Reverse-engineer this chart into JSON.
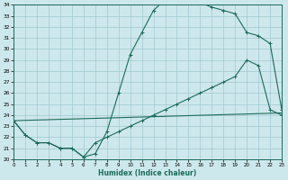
{
  "xlabel": "Humidex (Indice chaleur)",
  "bg_color": "#cde8ec",
  "grid_color": "#a0c8d0",
  "line_color": "#1a6b5a",
  "xlim": [
    0,
    23
  ],
  "ylim": [
    20,
    34
  ],
  "xticks": [
    0,
    1,
    2,
    3,
    4,
    5,
    6,
    7,
    8,
    9,
    10,
    11,
    12,
    13,
    14,
    15,
    16,
    17,
    18,
    19,
    20,
    21,
    22,
    23
  ],
  "yticks": [
    20,
    21,
    22,
    23,
    24,
    25,
    26,
    27,
    28,
    29,
    30,
    31,
    32,
    33,
    34
  ],
  "curve1_x": [
    0,
    1,
    2,
    3,
    4,
    5,
    6,
    7,
    8,
    9,
    10,
    11,
    12,
    13,
    14,
    15,
    16,
    17,
    18,
    19,
    20,
    21,
    22,
    23
  ],
  "curve1_y": [
    23.5,
    22.2,
    21.5,
    21.5,
    21.0,
    21.0,
    20.2,
    20.5,
    22.5,
    26.0,
    29.5,
    31.5,
    33.5,
    34.5,
    34.7,
    34.5,
    34.2,
    33.8,
    33.5,
    33.2,
    31.5,
    31.2,
    30.5,
    24.5
  ],
  "curve2_x": [
    0,
    1,
    2,
    3,
    4,
    5,
    6,
    7,
    8,
    9,
    10,
    11,
    12,
    13,
    14,
    15,
    16,
    17,
    18,
    19,
    20,
    21,
    22,
    23
  ],
  "curve2_y": [
    23.5,
    22.2,
    21.5,
    21.5,
    21.0,
    21.0,
    20.2,
    21.5,
    22.0,
    22.5,
    23.0,
    23.5,
    24.0,
    24.5,
    25.0,
    25.5,
    26.0,
    26.5,
    27.0,
    27.5,
    29.0,
    28.5,
    24.5,
    24.0
  ],
  "curve3_x": [
    0,
    23
  ],
  "curve3_y": [
    23.5,
    24.2
  ]
}
